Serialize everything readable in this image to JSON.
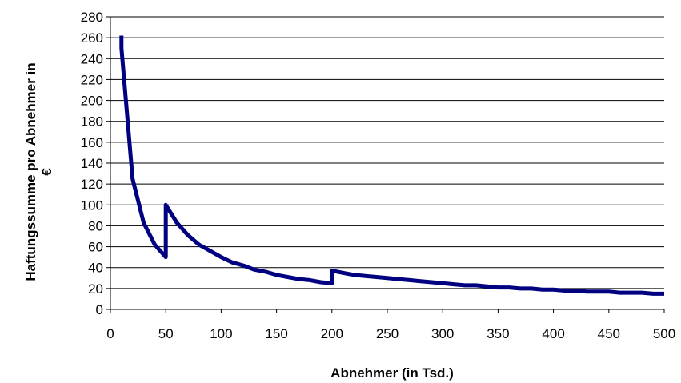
{
  "chart_data": {
    "type": "line",
    "title": "",
    "xlabel": "Abnehmer (in Tsd.)",
    "ylabel_line1": "Haftungssumme pro Abnehmer in",
    "ylabel_line2": "€",
    "xlim": [
      0,
      500
    ],
    "ylim": [
      0,
      280
    ],
    "x_ticks": [
      0,
      50,
      100,
      150,
      200,
      250,
      300,
      350,
      400,
      450,
      500
    ],
    "y_ticks": [
      0,
      20,
      40,
      60,
      80,
      100,
      120,
      140,
      160,
      180,
      200,
      220,
      240,
      260,
      280
    ],
    "grid": "horizontal",
    "legend": "none",
    "colors": {
      "line": "#000080",
      "grid": "#000000",
      "axis": "#000000"
    },
    "series": [
      {
        "x": [
          10,
          10,
          20,
          30,
          40,
          50,
          50,
          60,
          70,
          80,
          90,
          100,
          110,
          120,
          130,
          140,
          150,
          160,
          170,
          180,
          190,
          200,
          200,
          210,
          220,
          230,
          240,
          250,
          260,
          270,
          280,
          290,
          300,
          310,
          320,
          330,
          340,
          350,
          360,
          370,
          380,
          390,
          400,
          410,
          420,
          430,
          440,
          450,
          460,
          470,
          480,
          490,
          500
        ],
        "values": [
          262,
          250,
          125,
          83,
          62,
          50,
          100,
          83,
          71,
          62,
          56,
          50,
          45,
          42,
          38,
          36,
          33,
          31,
          29,
          28,
          26,
          25,
          37,
          35,
          33,
          32,
          31,
          30,
          29,
          28,
          27,
          26,
          25,
          24,
          23,
          23,
          22,
          21,
          21,
          20,
          20,
          19,
          19,
          18,
          18,
          17,
          17,
          17,
          16,
          16,
          16,
          15,
          15
        ]
      }
    ]
  }
}
